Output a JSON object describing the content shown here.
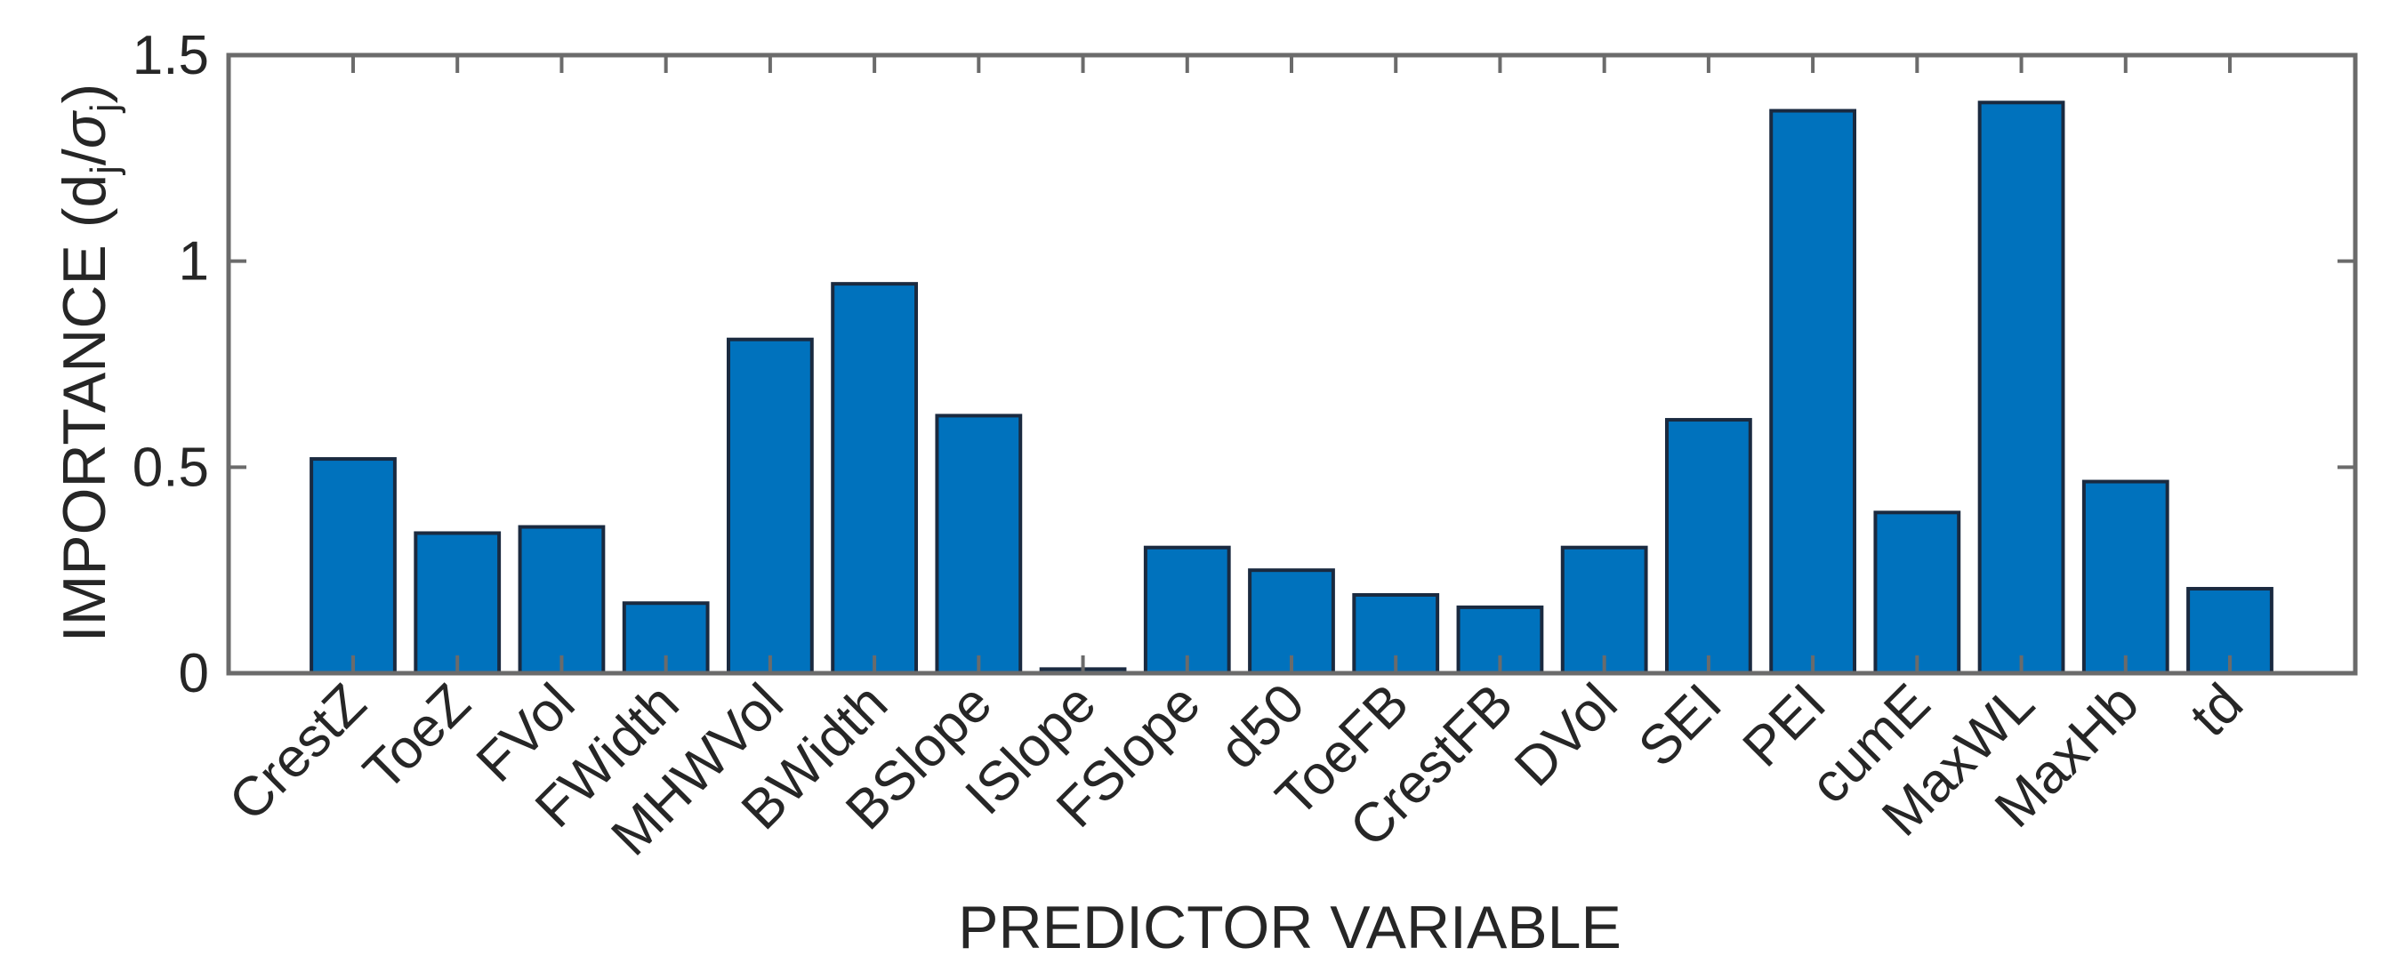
{
  "chart_data": {
    "type": "bar",
    "title": "",
    "xlabel": "PREDICTOR VARIABLE",
    "ylabel": "IMPORTANCE (d",
    "ylabel_sub_j": "j",
    "ylabel_slash": "/",
    "ylabel_sigma": "σ",
    "ylabel_close": ")",
    "categories": [
      "CrestZ",
      "ToeZ",
      "FVol",
      "FWidth",
      "MHWVol",
      "BWidth",
      "BSlope",
      "ISlope",
      "FSlope",
      "d50",
      "ToeFB",
      "CrestFB",
      "DVol",
      "SEI",
      "PEI",
      "cumE",
      "MaxWL",
      "MaxHb",
      "td"
    ],
    "values": [
      0.52,
      0.34,
      0.355,
      0.17,
      0.81,
      0.945,
      0.625,
      0.01,
      0.305,
      0.25,
      0.19,
      0.16,
      0.305,
      0.615,
      1.365,
      0.39,
      1.385,
      0.465,
      0.205
    ],
    "ylim": [
      0,
      1.5
    ],
    "yticks": [
      0,
      0.5,
      1,
      1.5
    ],
    "ytick_labels": [
      "0",
      "0.5",
      "1",
      "1.5"
    ],
    "grid": false,
    "bar_color": "#0072BD",
    "bar_edge_color": "#1a2a40",
    "axis_color": "#6b6b6b"
  }
}
